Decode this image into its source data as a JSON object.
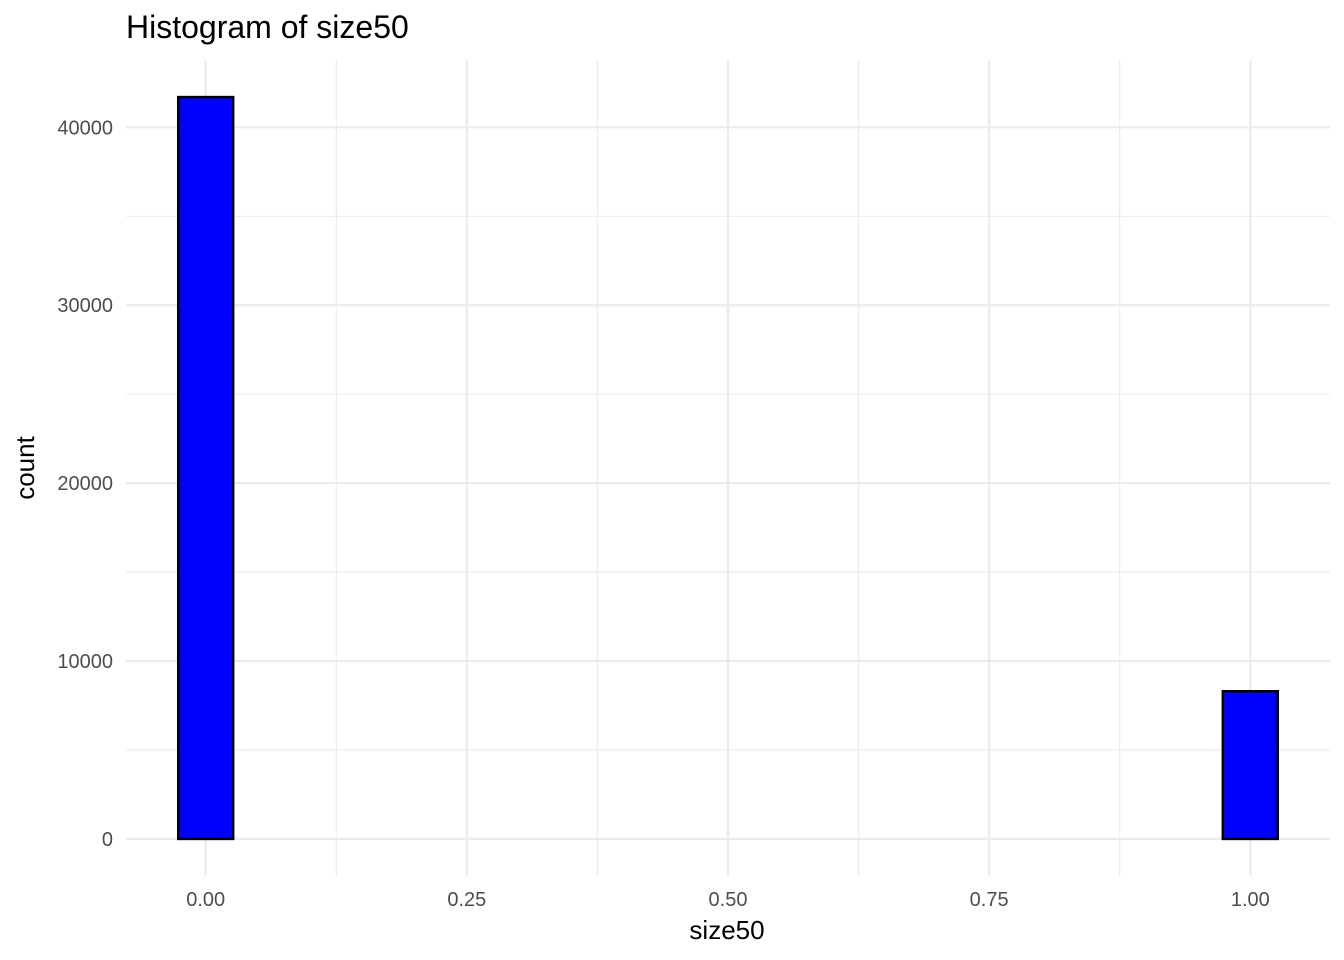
{
  "chart_data": {
    "type": "bar",
    "title": "Histogram of size50",
    "xlabel": "size50",
    "ylabel": "count",
    "bin_width": 0.0526,
    "bins": [
      {
        "x": 0.0,
        "count": 41700
      },
      {
        "x": 0.0526,
        "count": 0
      },
      {
        "x": 0.1053,
        "count": 0
      },
      {
        "x": 0.1579,
        "count": 0
      },
      {
        "x": 0.2105,
        "count": 0
      },
      {
        "x": 0.2632,
        "count": 0
      },
      {
        "x": 0.3158,
        "count": 0
      },
      {
        "x": 0.3684,
        "count": 0
      },
      {
        "x": 0.4211,
        "count": 0
      },
      {
        "x": 0.4737,
        "count": 0
      },
      {
        "x": 0.5263,
        "count": 0
      },
      {
        "x": 0.5789,
        "count": 0
      },
      {
        "x": 0.6316,
        "count": 0
      },
      {
        "x": 0.6842,
        "count": 0
      },
      {
        "x": 0.7368,
        "count": 0
      },
      {
        "x": 0.7895,
        "count": 0
      },
      {
        "x": 0.8421,
        "count": 0
      },
      {
        "x": 0.8947,
        "count": 0
      },
      {
        "x": 0.9474,
        "count": 0
      },
      {
        "x": 1.0,
        "count": 8300
      }
    ],
    "x_ticks": [
      "0.00",
      "0.25",
      "0.50",
      "0.75",
      "1.00"
    ],
    "y_ticks": [
      "0",
      "10000",
      "20000",
      "30000",
      "40000"
    ],
    "xlim": [
      -0.0763,
      1.0763
    ],
    "ylim": [
      -2085,
      43785
    ],
    "grid": true,
    "colors": {
      "bar_fill": "#0000ff",
      "bar_outline": "#000000",
      "grid": "#ebebeb"
    }
  }
}
